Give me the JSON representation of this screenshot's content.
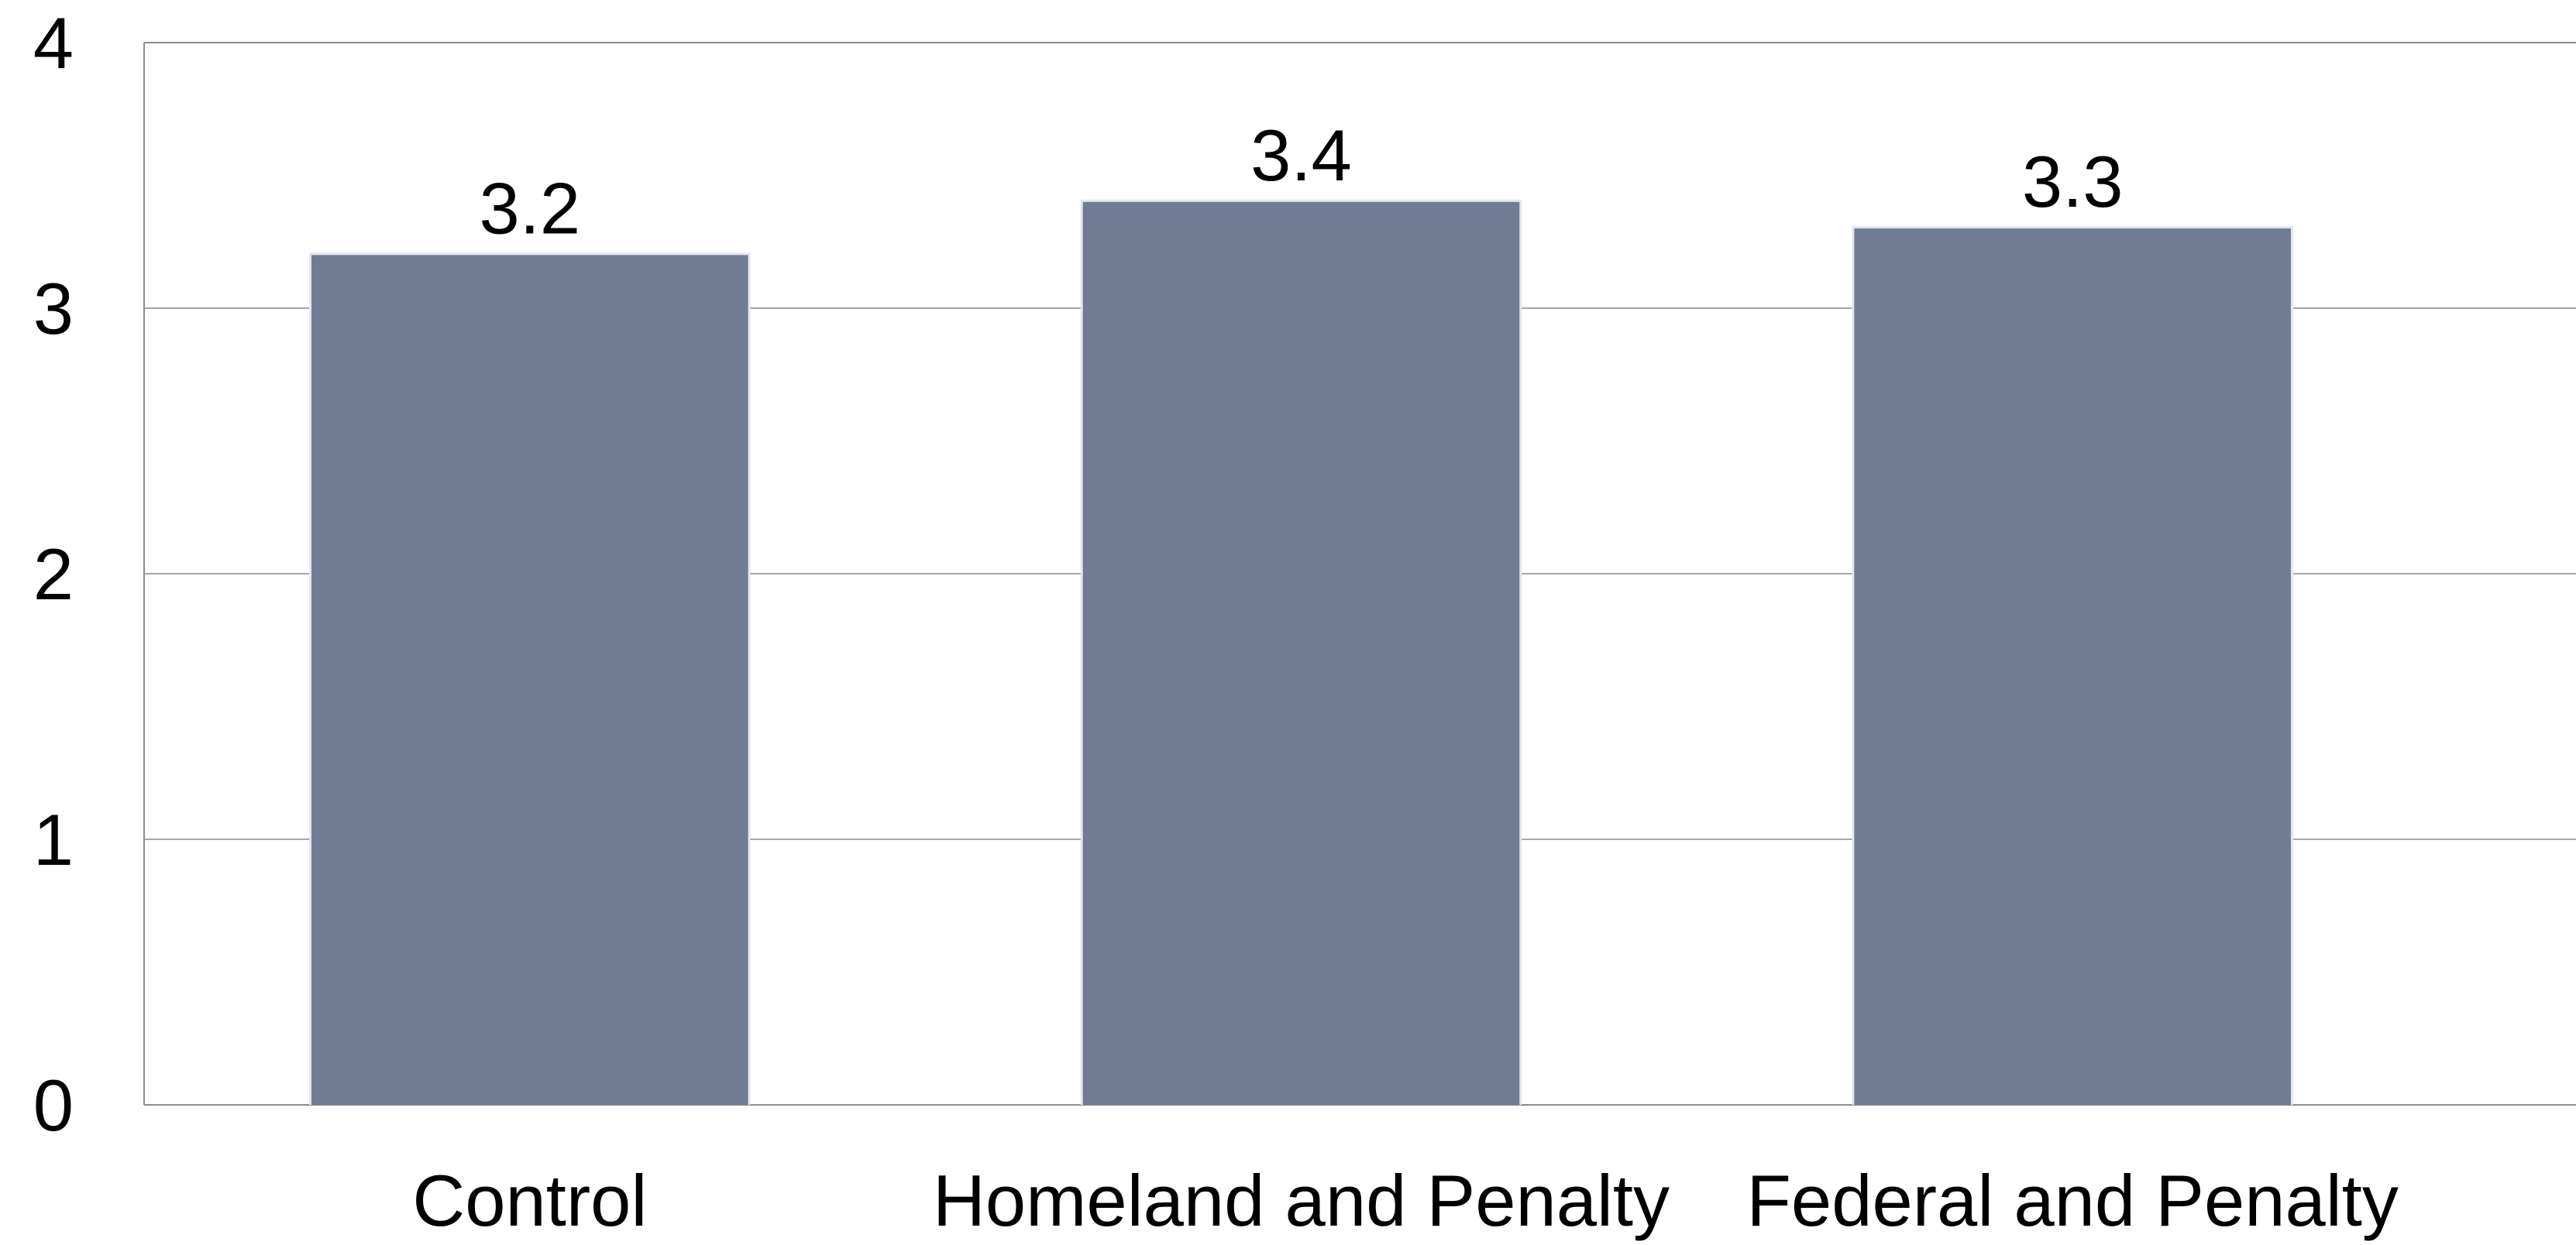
{
  "chart_data": {
    "type": "bar",
    "categories": [
      "Control",
      "Homeland and Penalty",
      "Federal and Penalty"
    ],
    "values": [
      3.2,
      3.4,
      3.3
    ],
    "data_labels": [
      "3.2",
      "3.4",
      "3.3"
    ],
    "yticks": [
      "0",
      "1",
      "2",
      "3",
      "4"
    ],
    "ylim": [
      0,
      4
    ],
    "grid": true,
    "legend": "none",
    "bar_color": "#717b93",
    "grid_color": "#a6a6a6",
    "axis_color": "#8c8c8c"
  }
}
